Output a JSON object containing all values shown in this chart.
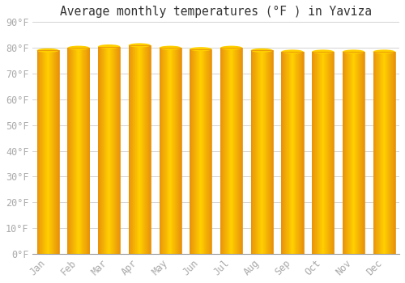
{
  "title": "Average monthly temperatures (°F ) in Yaviza",
  "months": [
    "Jan",
    "Feb",
    "Mar",
    "Apr",
    "May",
    "Jun",
    "Jul",
    "Aug",
    "Sep",
    "Oct",
    "Nov",
    "Dec"
  ],
  "values": [
    79,
    80,
    80.5,
    81,
    80,
    79.5,
    80,
    79,
    78.5,
    78.5,
    78.5,
    78.5
  ],
  "ylim": [
    0,
    90
  ],
  "yticks": [
    0,
    10,
    20,
    30,
    40,
    50,
    60,
    70,
    80,
    90
  ],
  "bar_color_center": "#FFD000",
  "bar_color_edge": "#E8920A",
  "background_color": "#ffffff",
  "grid_color": "#cccccc",
  "title_fontsize": 10.5,
  "tick_fontsize": 8.5,
  "font_family": "monospace",
  "tick_color": "#aaaaaa",
  "bar_width": 0.72,
  "n_gradient_steps": 50,
  "figsize": [
    5.0,
    3.5
  ],
  "dpi": 100
}
